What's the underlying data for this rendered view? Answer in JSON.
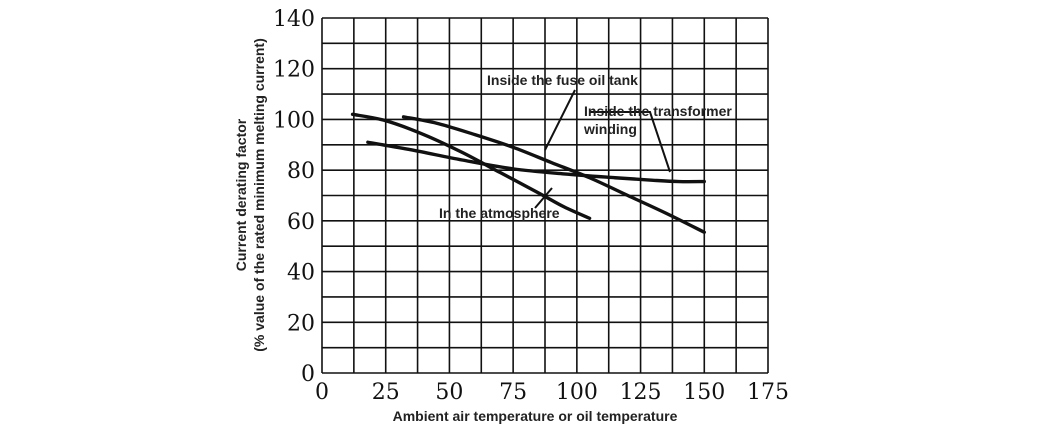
{
  "chart_data": {
    "type": "line",
    "title": "",
    "xlabel": "Ambient air temperature or oil temperature",
    "ylabel_line1": "Current derating factor",
    "ylabel_line2": "(% value of the rated minimum melting current)",
    "xlim": [
      0,
      175
    ],
    "ylim": [
      0,
      140
    ],
    "x_ticks": [
      0,
      25,
      50,
      75,
      100,
      125,
      150,
      175
    ],
    "y_ticks": [
      0,
      20,
      40,
      60,
      80,
      100,
      120,
      140
    ],
    "grid": true,
    "series": [
      {
        "name": "In the atmosphere",
        "points": [
          [
            12,
            102
          ],
          [
            25,
            99.5
          ],
          [
            40,
            94
          ],
          [
            55,
            87
          ],
          [
            70,
            79
          ],
          [
            85,
            71
          ],
          [
            95,
            65.5
          ],
          [
            105,
            61
          ]
        ]
      },
      {
        "name": "Inside the fuse oil tank",
        "points": [
          [
            32,
            101
          ],
          [
            45,
            98.5
          ],
          [
            60,
            94
          ],
          [
            75,
            89
          ],
          [
            90,
            83
          ],
          [
            105,
            77
          ],
          [
            120,
            70
          ],
          [
            135,
            63
          ],
          [
            150,
            55.5
          ]
        ]
      },
      {
        "name": "Inside the transformer winding",
        "points": [
          [
            18,
            91
          ],
          [
            35,
            88
          ],
          [
            55,
            84
          ],
          [
            75,
            80.5
          ],
          [
            95,
            78.5
          ],
          [
            115,
            77
          ],
          [
            130,
            76
          ],
          [
            140,
            75.5
          ],
          [
            150,
            75.5
          ]
        ]
      }
    ],
    "annotations": {
      "oil_tank": "Inside the fuse oil tank",
      "winding_line1": "Inside the transformer",
      "winding_line2": "winding",
      "atmosphere": "In the atmosphere"
    }
  }
}
